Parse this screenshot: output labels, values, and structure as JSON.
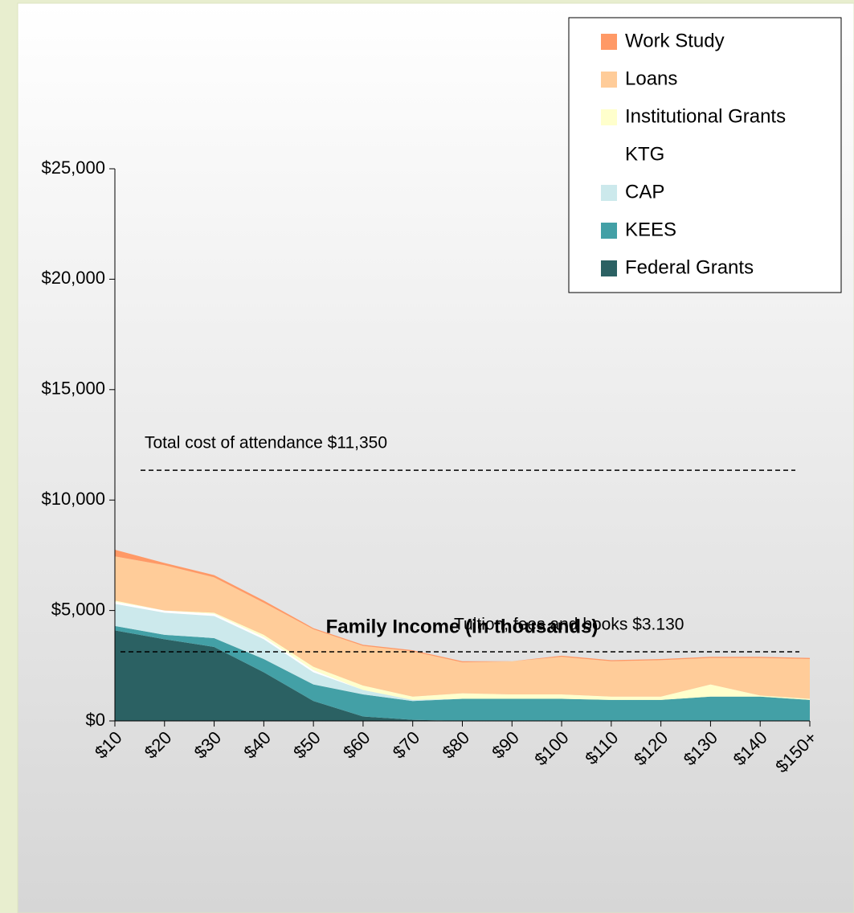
{
  "chart_data": {
    "type": "stacked_area",
    "xlabel": "Family Income (in thousands)",
    "categories": [
      "$10",
      "$20",
      "$30",
      "$40",
      "$50",
      "$60",
      "$70",
      "$80",
      "$90",
      "$100",
      "$110",
      "$120",
      "$130",
      "$140",
      "$150+"
    ],
    "series": [
      {
        "name": "Federal Grants",
        "color": "#2b6163",
        "values": [
          4100,
          3700,
          3350,
          2200,
          900,
          200,
          50,
          0,
          0,
          0,
          0,
          0,
          0,
          0,
          0
        ]
      },
      {
        "name": "KEES",
        "color": "#43a0a6",
        "values": [
          200,
          200,
          400,
          600,
          750,
          1000,
          850,
          1000,
          1000,
          1000,
          950,
          950,
          1100,
          1100,
          950
        ]
      },
      {
        "name": "CAP",
        "color": "#cce9ec",
        "values": [
          1000,
          1000,
          1000,
          900,
          550,
          200,
          50,
          0,
          0,
          0,
          0,
          0,
          0,
          0,
          0
        ]
      },
      {
        "name": "KTG",
        "color": "#ffffff",
        "values": [
          100,
          100,
          100,
          100,
          100,
          0,
          0,
          0,
          0,
          0,
          0,
          0,
          0,
          0,
          0
        ]
      },
      {
        "name": "Institutional Grants",
        "color": "#ffffcc",
        "values": [
          50,
          0,
          50,
          100,
          150,
          200,
          150,
          250,
          200,
          200,
          150,
          150,
          550,
          50,
          50
        ]
      },
      {
        "name": "Loans",
        "color": "#ffcc99",
        "values": [
          2000,
          2050,
          1600,
          1450,
          1700,
          1800,
          2050,
          1400,
          1500,
          1700,
          1600,
          1650,
          1200,
          1700,
          1800
        ]
      },
      {
        "name": "Work Study",
        "color": "#ff9966",
        "values": [
          300,
          100,
          100,
          100,
          50,
          50,
          50,
          50,
          0,
          50,
          50,
          50,
          50,
          50,
          50
        ]
      }
    ],
    "ylim": [
      0,
      25000
    ],
    "yticks": [
      {
        "value": 0,
        "label": "$0"
      },
      {
        "value": 5000,
        "label": "$5,000"
      },
      {
        "value": 10000,
        "label": "$10,000"
      },
      {
        "value": 15000,
        "label": "$15,000"
      },
      {
        "value": 20000,
        "label": "$20,000"
      },
      {
        "value": 25000,
        "label": "$25,000"
      }
    ],
    "annotations": [
      {
        "text": "Total cost of attendance $11,350",
        "value": 11350
      },
      {
        "text": "Tuition, fees and books $3.130",
        "value": 3130
      }
    ],
    "legend": "upper right"
  }
}
